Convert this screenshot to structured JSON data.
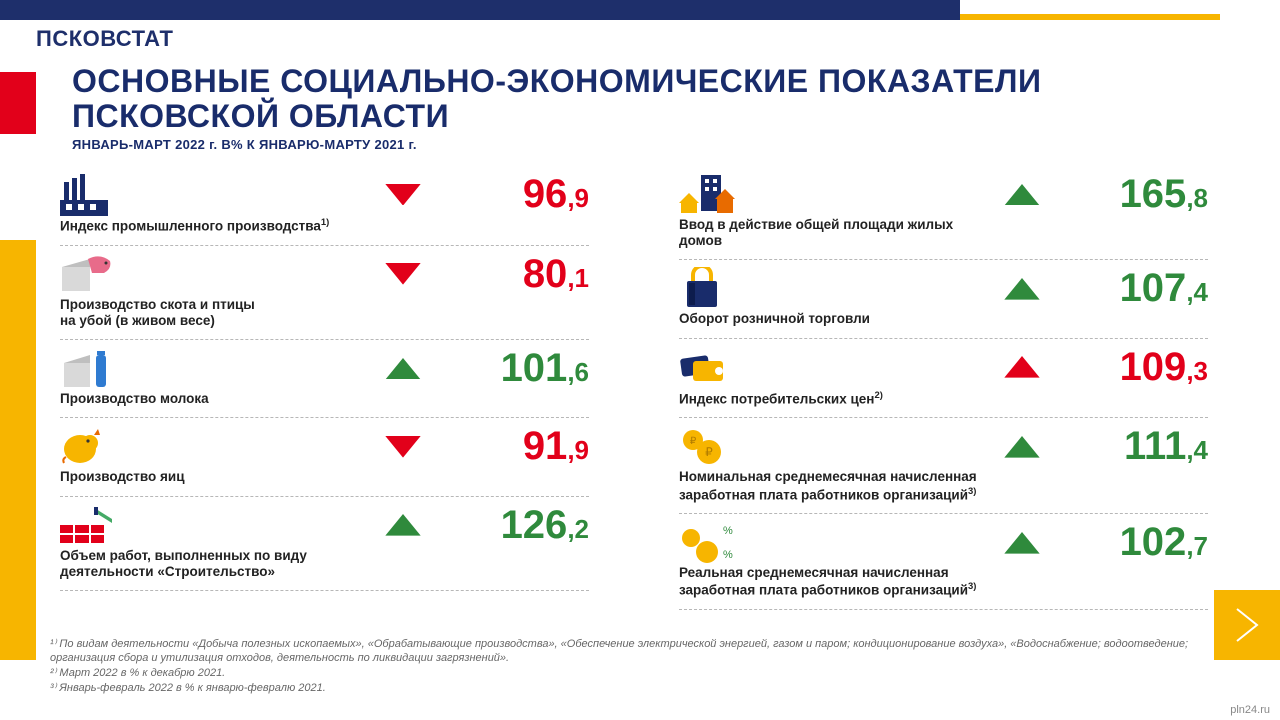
{
  "colors": {
    "navy": "#192c6b",
    "red": "#e2001a",
    "green": "#2f8a3c",
    "yellow": "#f7b500",
    "dark_text": "#222222",
    "footnote_text": "#666666"
  },
  "brand": "ПСКОВСТАТ",
  "title": "ОСНОВНЫЕ  СОЦИАЛЬНО-ЭКОНОМИЧЕСКИЕ  ПОКАЗАТЕЛИ ПСКОВСКОЙ  ОБЛАСТИ",
  "subtitle": "ЯНВАРЬ-МАРТ 2022 г.   В% К  ЯНВАРЮ-МАРТУ 2021 г.",
  "sitemark": "pln24.ru",
  "indicators": {
    "left": [
      {
        "icon": "factory",
        "label": "Индекс промышленного производства",
        "sup": "1)",
        "int": "96",
        "dec": ",9",
        "dir": "down",
        "color": "red"
      },
      {
        "icon": "livestock",
        "label": "Производство скота и птицы\nна убой (в живом весе)",
        "int": "80",
        "dec": ",1",
        "dir": "down",
        "color": "red"
      },
      {
        "icon": "milk",
        "label": "Производство молока",
        "int": "101",
        "dec": ",6",
        "dir": "up",
        "color": "green"
      },
      {
        "icon": "egg",
        "label": "Производство яиц",
        "int": "91",
        "dec": ",9",
        "dir": "down",
        "color": "red"
      },
      {
        "icon": "construction",
        "label": "Объем работ, выполненных по виду\nдеятельности «Строительство»",
        "int": "126",
        "dec": ",2",
        "dir": "up",
        "color": "green"
      }
    ],
    "right": [
      {
        "icon": "housing",
        "label": "Ввод в действие общей площади жилых домов",
        "int": "165",
        "dec": ",8",
        "dir": "up",
        "color": "green"
      },
      {
        "icon": "retail",
        "label": "Оборот розничной торговли",
        "int": "107",
        "dec": ",4",
        "dir": "up",
        "color": "green"
      },
      {
        "icon": "cpi",
        "label": "Индекс потребительских цен",
        "sup": "2)",
        "int": "109",
        "dec": ",3",
        "dir": "up",
        "color": "red"
      },
      {
        "icon": "wage-nominal",
        "label": "Номинальная среднемесячная начисленная\nзаработная плата  работников организаций",
        "sup": "3)",
        "int": "111",
        "dec": ",4",
        "dir": "up",
        "color": "green"
      },
      {
        "icon": "wage-real",
        "label": "Реальная среднемесячная  начисленная\nзаработная плата  работников организаций",
        "sup": "3)",
        "int": "102",
        "dec": ",7",
        "dir": "up",
        "color": "green"
      }
    ]
  },
  "arrow_style": {
    "size": 36
  },
  "footnotes": [
    "¹⁾ По видам деятельности «Добыча полезных ископаемых», «Обрабатывающие производства», «Обеспечение электрической энергией, газом и паром; кондиционирование воздуха», «Водоснабжение; водоотведение; организация сбора и утилизация отходов, деятельность по ликвидации загрязнений».",
    "²⁾ Март 2022 в % к декабрю 2021.",
    "³⁾ Январь-февраль 2022 в % к январю-февралю 2021."
  ]
}
